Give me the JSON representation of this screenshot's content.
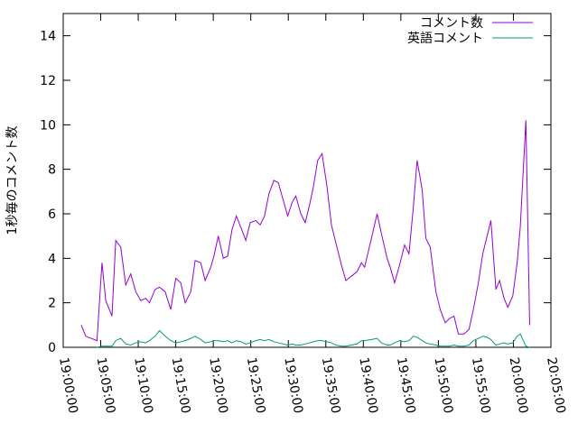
{
  "chart_data": {
    "type": "line",
    "y_label": "1秒毎のコメント数",
    "x": [
      "19:02:24",
      "19:03:00",
      "19:04:30",
      "19:05:10",
      "19:05:40",
      "19:06:30",
      "19:07:00",
      "19:07:40",
      "19:08:20",
      "19:09:00",
      "19:09:40",
      "19:10:20",
      "19:11:00",
      "19:11:30",
      "19:12:15",
      "19:12:50",
      "19:13:35",
      "19:14:20",
      "19:15:00",
      "19:15:40",
      "19:16:15",
      "19:17:00",
      "19:17:35",
      "19:18:20",
      "19:18:55",
      "19:19:40",
      "19:20:05",
      "19:20:40",
      "19:21:20",
      "19:21:55",
      "19:22:30",
      "19:23:05",
      "19:23:40",
      "19:24:20",
      "19:24:55",
      "19:25:40",
      "19:26:15",
      "19:26:50",
      "19:27:25",
      "19:28:05",
      "19:28:40",
      "19:29:20",
      "19:29:55",
      "19:30:30",
      "19:31:00",
      "19:31:40",
      "19:32:15",
      "19:32:50",
      "19:33:20",
      "19:33:55",
      "19:34:30",
      "19:35:10",
      "19:35:45",
      "19:36:20",
      "19:37:05",
      "19:37:40",
      "19:38:25",
      "19:39:10",
      "19:39:45",
      "19:40:10",
      "19:41:05",
      "19:41:50",
      "19:42:25",
      "19:43:10",
      "19:43:35",
      "19:44:10",
      "19:44:50",
      "19:45:30",
      "19:46:05",
      "19:46:40",
      "19:47:10",
      "19:47:50",
      "19:48:20",
      "19:48:55",
      "19:49:40",
      "19:50:15",
      "19:50:55",
      "19:51:30",
      "19:52:05",
      "19:52:40",
      "19:53:25",
      "19:54:05",
      "19:54:40",
      "19:55:20",
      "19:55:55",
      "19:56:30",
      "19:57:00",
      "19:57:40",
      "19:58:10",
      "19:58:45",
      "19:59:15",
      "19:59:55",
      "20:00:30",
      "20:00:55",
      "20:01:40",
      "20:02:10"
    ],
    "series": [
      {
        "name": "コメント数",
        "color": "#9400d3",
        "values": [
          1.0,
          0.5,
          0.3,
          3.8,
          2.1,
          1.4,
          4.8,
          4.5,
          2.8,
          3.3,
          2.5,
          2.1,
          2.2,
          2.0,
          2.6,
          2.7,
          2.5,
          1.7,
          3.1,
          2.9,
          2.0,
          2.5,
          3.9,
          3.8,
          3.0,
          3.6,
          4.1,
          5.0,
          4.0,
          4.1,
          5.3,
          5.9,
          5.4,
          4.8,
          5.6,
          5.7,
          5.5,
          5.9,
          6.9,
          7.5,
          7.4,
          6.6,
          5.9,
          6.5,
          6.8,
          6.0,
          5.6,
          6.4,
          7.2,
          8.4,
          8.7,
          7.2,
          5.5,
          4.7,
          3.7,
          3.0,
          3.2,
          3.4,
          3.8,
          3.6,
          4.9,
          6.0,
          5.1,
          4.0,
          3.6,
          2.9,
          3.7,
          4.6,
          4.2,
          6.3,
          8.4,
          7.1,
          4.9,
          4.5,
          2.5,
          1.7,
          1.1,
          1.3,
          1.4,
          0.6,
          0.6,
          0.8,
          1.7,
          2.9,
          4.2,
          5.0,
          5.7,
          2.6,
          3.0,
          2.2,
          1.8,
          2.3,
          3.8,
          5.4,
          10.2,
          1.0
        ]
      },
      {
        "name": "英語コメント",
        "color": "#009e73",
        "values": [
          null,
          null,
          0.0,
          0.05,
          0.05,
          0.05,
          0.3,
          0.4,
          0.15,
          0.1,
          0.2,
          0.25,
          0.2,
          0.3,
          0.5,
          0.75,
          0.5,
          0.3,
          0.2,
          0.25,
          0.3,
          0.4,
          0.5,
          0.35,
          0.2,
          0.25,
          0.3,
          0.3,
          0.25,
          0.3,
          0.2,
          0.3,
          0.25,
          0.15,
          0.2,
          0.3,
          0.35,
          0.3,
          0.35,
          0.25,
          0.2,
          0.15,
          0.1,
          0.15,
          0.1,
          0.1,
          0.15,
          0.2,
          0.25,
          0.3,
          0.3,
          0.25,
          0.2,
          0.1,
          0.05,
          0.05,
          0.1,
          0.15,
          0.3,
          0.3,
          0.35,
          0.4,
          0.2,
          0.1,
          0.1,
          0.2,
          0.3,
          0.25,
          0.3,
          0.5,
          0.45,
          0.3,
          0.2,
          0.15,
          0.1,
          0.05,
          0.05,
          0.05,
          0.1,
          0.05,
          0.05,
          0.1,
          0.3,
          0.4,
          0.5,
          0.45,
          0.35,
          0.1,
          0.15,
          0.2,
          0.15,
          0.2,
          0.5,
          0.6,
          0.05,
          0.0
        ]
      }
    ],
    "xlim": [
      "19:00:00",
      "20:05:00"
    ],
    "xticks": [
      "19:00:00",
      "19:05:00",
      "19:10:00",
      "19:15:00",
      "19:20:00",
      "19:25:00",
      "19:30:00",
      "19:35:00",
      "19:40:00",
      "19:45:00",
      "19:50:00",
      "19:55:00",
      "20:00:00",
      "20:05:00"
    ],
    "ylim": [
      0,
      15
    ],
    "yticks": [
      0,
      2,
      4,
      6,
      8,
      10,
      12,
      14
    ],
    "legend": "top right"
  }
}
